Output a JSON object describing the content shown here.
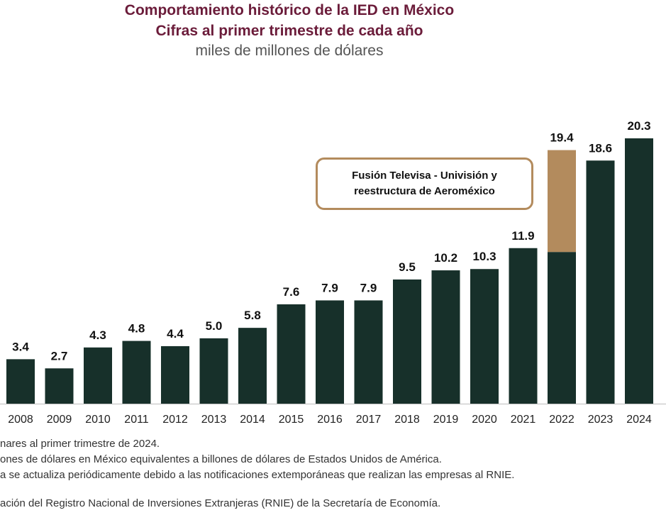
{
  "header": {
    "title": "Comportamiento histórico de la IED en México",
    "subtitle": "Cifras al primer trimestre de cada año",
    "units": "miles de millones de dólares"
  },
  "annotation": {
    "text": "Fusión Televisa - Univisión y reestructura de Aeroméxico"
  },
  "footnotes": [
    "nares al primer trimestre de 2024.",
    "ones de dólares en México equivalentes a billones de dólares de Estados Unidos de América.",
    "a se actualiza periódicamente debido a las notificaciones extemporáneas que realizan las empresas al RNIE.",
    "ación del Registro Nacional de Inversiones Extranjeras (RNIE) de la Secretaría de Economía."
  ],
  "colors": {
    "bar": "#17302a",
    "highlight": "#b38b5d",
    "title": "#6b1c3a"
  },
  "chart_data": {
    "type": "bar",
    "title": "Comportamiento histórico de la IED en México",
    "subtitle": "Cifras al primer trimestre de cada año",
    "ylabel": "miles de millones de dólares",
    "categories": [
      "2008",
      "2009",
      "2010",
      "2011",
      "2012",
      "2013",
      "2014",
      "2015",
      "2016",
      "2017",
      "2018",
      "2019",
      "2020",
      "2021",
      "2022",
      "2023",
      "2024"
    ],
    "values": [
      3.4,
      2.7,
      4.3,
      4.8,
      4.4,
      5.0,
      5.8,
      7.6,
      7.9,
      7.9,
      9.5,
      10.2,
      10.3,
      11.9,
      19.4,
      18.6,
      20.3
    ],
    "labels": [
      "3.4",
      "2.7",
      "4.3",
      "4.8",
      "4.4",
      "5.0",
      "5.8",
      "7.6",
      "7.9",
      "7.9",
      "9.5",
      "10.2",
      "10.3",
      "11.9",
      "19.4",
      "18.6",
      "20.3"
    ],
    "highlight": {
      "category": "2022",
      "base": 11.6,
      "annotation": "Fusión Televisa - Univisión y reestructura de Aeroméxico"
    },
    "ylim": [
      0,
      20.3
    ],
    "grid": false,
    "legend": "none"
  }
}
